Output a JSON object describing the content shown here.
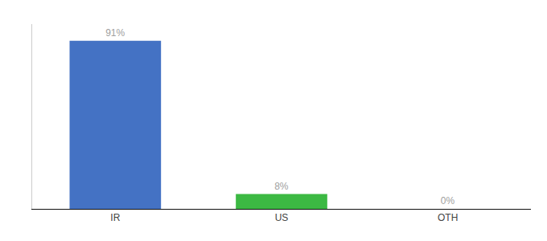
{
  "chart_data": {
    "type": "bar",
    "categories": [
      "IR",
      "US",
      "OTH"
    ],
    "values": [
      91,
      8,
      0
    ],
    "value_labels": [
      "91%",
      "8%",
      "0%"
    ],
    "colors": [
      "#4472c4",
      "#3cb943",
      "#4472c4"
    ],
    "ylim": [
      0,
      100
    ],
    "grid": false,
    "data_labels": true,
    "tick_labels": "x"
  }
}
